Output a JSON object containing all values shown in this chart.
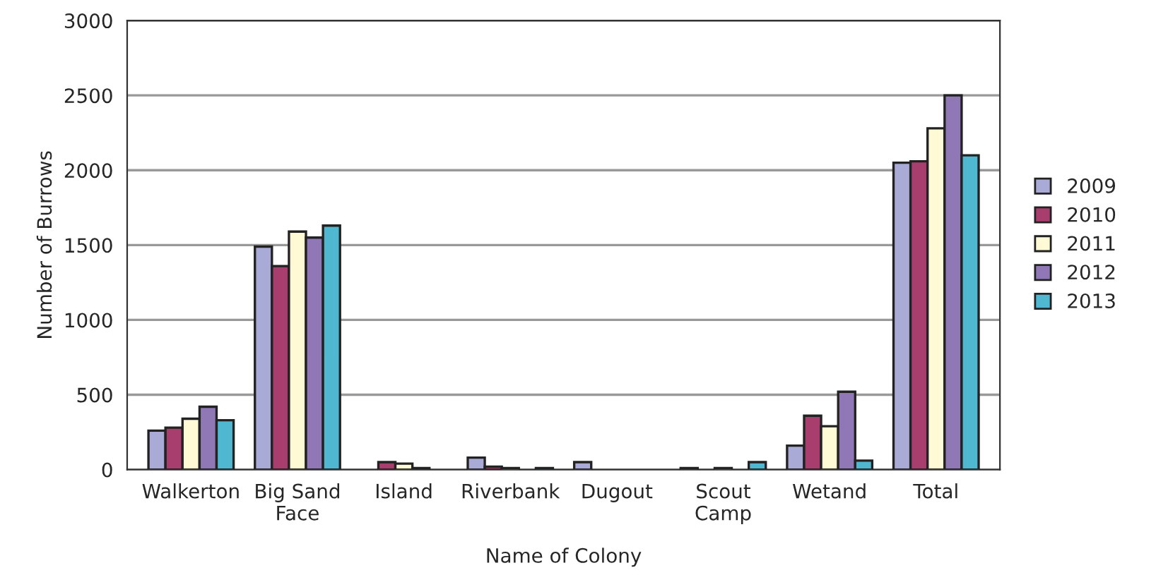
{
  "chart_data": {
    "type": "bar",
    "xlabel": "Name of Colony",
    "ylabel": "Number of Burrows",
    "categories": [
      "Walkerton",
      "Big Sand\nFace",
      "Island",
      "Riverbank",
      "Dugout",
      "Scout\nCamp",
      "Wetand",
      "Total"
    ],
    "series": [
      {
        "name": "2009",
        "color": "#aaaad6",
        "values": [
          260,
          1490,
          null,
          80,
          50,
          10,
          160,
          2050
        ]
      },
      {
        "name": "2010",
        "color": "#a83e6e",
        "values": [
          280,
          1360,
          50,
          20,
          null,
          null,
          360,
          2060
        ]
      },
      {
        "name": "2011",
        "color": "#fffad6",
        "values": [
          340,
          1590,
          40,
          10,
          null,
          10,
          290,
          2280
        ]
      },
      {
        "name": "2012",
        "color": "#8f78b5",
        "values": [
          420,
          1550,
          10,
          null,
          null,
          null,
          520,
          2500
        ]
      },
      {
        "name": "2013",
        "color": "#4fb8d0",
        "values": [
          330,
          1630,
          null,
          10,
          null,
          50,
          60,
          2100
        ]
      }
    ],
    "ylim": [
      0,
      3000
    ],
    "yticks": [
      0,
      500,
      1000,
      1500,
      2000,
      2500,
      3000
    ],
    "grid": "y",
    "legend": "right"
  }
}
